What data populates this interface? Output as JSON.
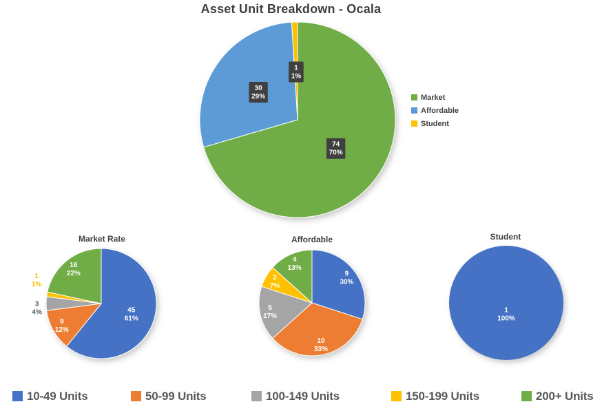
{
  "page": {
    "background": "#FFFFFF"
  },
  "colors": {
    "title_text": "#3F3F3F",
    "subtitle_text": "#404040",
    "legend_right_text": "#404040",
    "legend_bottom_text": "#595959",
    "label_box_fill": "#3F3F3F",
    "label_text_on_slice": "#FFFFFF",
    "blue_dark": "#4472C4",
    "blue_light": "#5B9BD5",
    "orange": "#ED7D31",
    "gray": "#A5A5A5",
    "yellow": "#FFC000",
    "green": "#70AD47"
  },
  "chart_data": [
    {
      "id": "main",
      "type": "pie",
      "title": "Asset Unit Breakdown - Ocala",
      "legend_position": "right",
      "label_style": "box",
      "categories": [
        "Market",
        "Affordable",
        "Student"
      ],
      "values": [
        74,
        30,
        1
      ],
      "slices": [
        {
          "name": "Market",
          "value": 74,
          "pct": "70%",
          "color": "#70AD47"
        },
        {
          "name": "Affordable",
          "value": 30,
          "pct": "29%",
          "color": "#5B9BD5"
        },
        {
          "name": "Student",
          "value": 1,
          "pct": "1%",
          "color": "#FFC000"
        }
      ]
    },
    {
      "id": "market-rate",
      "type": "pie",
      "title": "Market Rate",
      "legend_position": "bottom-shared",
      "categories": [
        "10-49 Units",
        "50-99 Units",
        "100-149 Units",
        "150-199 Units",
        "200+ Units"
      ],
      "values": [
        45,
        9,
        3,
        1,
        16
      ],
      "slices": [
        {
          "name": "10-49 Units",
          "value": 45,
          "pct": "61%",
          "color": "#4472C4",
          "label_r": 0.58
        },
        {
          "name": "50-99 Units",
          "value": 9,
          "pct": "12%",
          "color": "#ED7D31",
          "label_r": 0.82
        },
        {
          "name": "100-149 Units",
          "value": 3,
          "pct": "4%",
          "color": "#A5A5A5",
          "outside": true,
          "label_color": "#595959",
          "label_r": 1.17,
          "label_angle": 266
        },
        {
          "name": "150-199 Units",
          "value": 1,
          "pct": "1%",
          "color": "#FFC000",
          "outside": true,
          "label_color": "#FFC000",
          "label_r": 1.25,
          "label_angle": 290
        },
        {
          "name": "200+ Units",
          "value": 16,
          "pct": "22%",
          "color": "#70AD47",
          "label_r": 0.8
        }
      ]
    },
    {
      "id": "affordable",
      "type": "pie",
      "title": "Affordable",
      "legend_position": "bottom-shared",
      "categories": [
        "10-49 Units",
        "50-99 Units",
        "100-149 Units",
        "150-199 Units",
        "200+ Units"
      ],
      "values": [
        9,
        10,
        5,
        2,
        4
      ],
      "slices": [
        {
          "name": "10-49 Units",
          "value": 9,
          "pct": "30%",
          "color": "#4472C4"
        },
        {
          "name": "50-99 Units",
          "value": 10,
          "pct": "33%",
          "color": "#ED7D31"
        },
        {
          "name": "100-149 Units",
          "value": 5,
          "pct": "17%",
          "color": "#A5A5A5"
        },
        {
          "name": "150-199 Units",
          "value": 2,
          "pct": "7%",
          "color": "#FFC000"
        },
        {
          "name": "200+ Units",
          "value": 4,
          "pct": "13%",
          "color": "#70AD47"
        }
      ]
    },
    {
      "id": "student",
      "type": "pie",
      "title": "Student",
      "legend_position": "bottom-shared",
      "categories": [
        "10-49 Units"
      ],
      "values": [
        1
      ],
      "slices": [
        {
          "name": "10-49 Units",
          "value": 1,
          "pct": "100%",
          "color": "#4472C4",
          "label_r": 0.2
        }
      ]
    }
  ],
  "bottom_legend": {
    "items": [
      {
        "label": "10-49 Units",
        "color": "#4472C4"
      },
      {
        "label": "50-99 Units",
        "color": "#ED7D31"
      },
      {
        "label": "100-149 Units",
        "color": "#A5A5A5"
      },
      {
        "label": "150-199 Units",
        "color": "#FFC000"
      },
      {
        "label": "200+ Units",
        "color": "#70AD47"
      }
    ]
  }
}
